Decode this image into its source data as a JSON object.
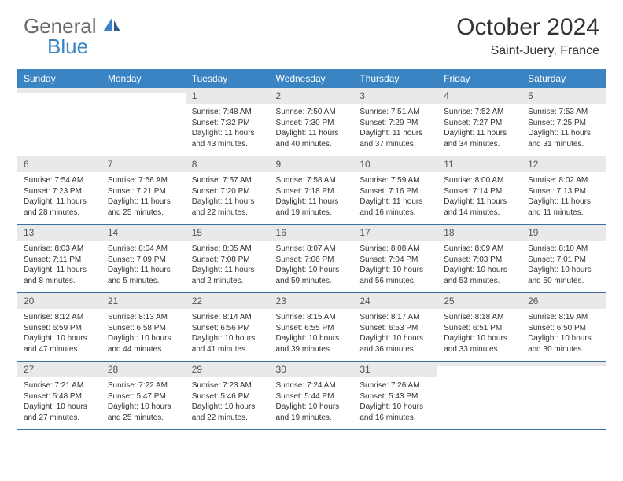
{
  "brand": {
    "part1": "General",
    "part2": "Blue"
  },
  "title": "October 2024",
  "location": "Saint-Juery, France",
  "colors": {
    "header_bg": "#3b84c4",
    "header_text": "#ffffff",
    "daynum_bg": "#e9e9e9",
    "row_border": "#3b6fa0",
    "logo_gray": "#6b6b6b",
    "logo_blue": "#3b84c4"
  },
  "day_names": [
    "Sunday",
    "Monday",
    "Tuesday",
    "Wednesday",
    "Thursday",
    "Friday",
    "Saturday"
  ],
  "weeks": [
    [
      {
        "n": "",
        "lines": [
          "",
          "",
          "",
          ""
        ]
      },
      {
        "n": "",
        "lines": [
          "",
          "",
          "",
          ""
        ]
      },
      {
        "n": "1",
        "lines": [
          "Sunrise: 7:48 AM",
          "Sunset: 7:32 PM",
          "Daylight: 11 hours",
          "and 43 minutes."
        ]
      },
      {
        "n": "2",
        "lines": [
          "Sunrise: 7:50 AM",
          "Sunset: 7:30 PM",
          "Daylight: 11 hours",
          "and 40 minutes."
        ]
      },
      {
        "n": "3",
        "lines": [
          "Sunrise: 7:51 AM",
          "Sunset: 7:29 PM",
          "Daylight: 11 hours",
          "and 37 minutes."
        ]
      },
      {
        "n": "4",
        "lines": [
          "Sunrise: 7:52 AM",
          "Sunset: 7:27 PM",
          "Daylight: 11 hours",
          "and 34 minutes."
        ]
      },
      {
        "n": "5",
        "lines": [
          "Sunrise: 7:53 AM",
          "Sunset: 7:25 PM",
          "Daylight: 11 hours",
          "and 31 minutes."
        ]
      }
    ],
    [
      {
        "n": "6",
        "lines": [
          "Sunrise: 7:54 AM",
          "Sunset: 7:23 PM",
          "Daylight: 11 hours",
          "and 28 minutes."
        ]
      },
      {
        "n": "7",
        "lines": [
          "Sunrise: 7:56 AM",
          "Sunset: 7:21 PM",
          "Daylight: 11 hours",
          "and 25 minutes."
        ]
      },
      {
        "n": "8",
        "lines": [
          "Sunrise: 7:57 AM",
          "Sunset: 7:20 PM",
          "Daylight: 11 hours",
          "and 22 minutes."
        ]
      },
      {
        "n": "9",
        "lines": [
          "Sunrise: 7:58 AM",
          "Sunset: 7:18 PM",
          "Daylight: 11 hours",
          "and 19 minutes."
        ]
      },
      {
        "n": "10",
        "lines": [
          "Sunrise: 7:59 AM",
          "Sunset: 7:16 PM",
          "Daylight: 11 hours",
          "and 16 minutes."
        ]
      },
      {
        "n": "11",
        "lines": [
          "Sunrise: 8:00 AM",
          "Sunset: 7:14 PM",
          "Daylight: 11 hours",
          "and 14 minutes."
        ]
      },
      {
        "n": "12",
        "lines": [
          "Sunrise: 8:02 AM",
          "Sunset: 7:13 PM",
          "Daylight: 11 hours",
          "and 11 minutes."
        ]
      }
    ],
    [
      {
        "n": "13",
        "lines": [
          "Sunrise: 8:03 AM",
          "Sunset: 7:11 PM",
          "Daylight: 11 hours",
          "and 8 minutes."
        ]
      },
      {
        "n": "14",
        "lines": [
          "Sunrise: 8:04 AM",
          "Sunset: 7:09 PM",
          "Daylight: 11 hours",
          "and 5 minutes."
        ]
      },
      {
        "n": "15",
        "lines": [
          "Sunrise: 8:05 AM",
          "Sunset: 7:08 PM",
          "Daylight: 11 hours",
          "and 2 minutes."
        ]
      },
      {
        "n": "16",
        "lines": [
          "Sunrise: 8:07 AM",
          "Sunset: 7:06 PM",
          "Daylight: 10 hours",
          "and 59 minutes."
        ]
      },
      {
        "n": "17",
        "lines": [
          "Sunrise: 8:08 AM",
          "Sunset: 7:04 PM",
          "Daylight: 10 hours",
          "and 56 minutes."
        ]
      },
      {
        "n": "18",
        "lines": [
          "Sunrise: 8:09 AM",
          "Sunset: 7:03 PM",
          "Daylight: 10 hours",
          "and 53 minutes."
        ]
      },
      {
        "n": "19",
        "lines": [
          "Sunrise: 8:10 AM",
          "Sunset: 7:01 PM",
          "Daylight: 10 hours",
          "and 50 minutes."
        ]
      }
    ],
    [
      {
        "n": "20",
        "lines": [
          "Sunrise: 8:12 AM",
          "Sunset: 6:59 PM",
          "Daylight: 10 hours",
          "and 47 minutes."
        ]
      },
      {
        "n": "21",
        "lines": [
          "Sunrise: 8:13 AM",
          "Sunset: 6:58 PM",
          "Daylight: 10 hours",
          "and 44 minutes."
        ]
      },
      {
        "n": "22",
        "lines": [
          "Sunrise: 8:14 AM",
          "Sunset: 6:56 PM",
          "Daylight: 10 hours",
          "and 41 minutes."
        ]
      },
      {
        "n": "23",
        "lines": [
          "Sunrise: 8:15 AM",
          "Sunset: 6:55 PM",
          "Daylight: 10 hours",
          "and 39 minutes."
        ]
      },
      {
        "n": "24",
        "lines": [
          "Sunrise: 8:17 AM",
          "Sunset: 6:53 PM",
          "Daylight: 10 hours",
          "and 36 minutes."
        ]
      },
      {
        "n": "25",
        "lines": [
          "Sunrise: 8:18 AM",
          "Sunset: 6:51 PM",
          "Daylight: 10 hours",
          "and 33 minutes."
        ]
      },
      {
        "n": "26",
        "lines": [
          "Sunrise: 8:19 AM",
          "Sunset: 6:50 PM",
          "Daylight: 10 hours",
          "and 30 minutes."
        ]
      }
    ],
    [
      {
        "n": "27",
        "lines": [
          "Sunrise: 7:21 AM",
          "Sunset: 5:48 PM",
          "Daylight: 10 hours",
          "and 27 minutes."
        ]
      },
      {
        "n": "28",
        "lines": [
          "Sunrise: 7:22 AM",
          "Sunset: 5:47 PM",
          "Daylight: 10 hours",
          "and 25 minutes."
        ]
      },
      {
        "n": "29",
        "lines": [
          "Sunrise: 7:23 AM",
          "Sunset: 5:46 PM",
          "Daylight: 10 hours",
          "and 22 minutes."
        ]
      },
      {
        "n": "30",
        "lines": [
          "Sunrise: 7:24 AM",
          "Sunset: 5:44 PM",
          "Daylight: 10 hours",
          "and 19 minutes."
        ]
      },
      {
        "n": "31",
        "lines": [
          "Sunrise: 7:26 AM",
          "Sunset: 5:43 PM",
          "Daylight: 10 hours",
          "and 16 minutes."
        ]
      },
      {
        "n": "",
        "lines": [
          "",
          "",
          "",
          ""
        ]
      },
      {
        "n": "",
        "lines": [
          "",
          "",
          "",
          ""
        ]
      }
    ]
  ]
}
